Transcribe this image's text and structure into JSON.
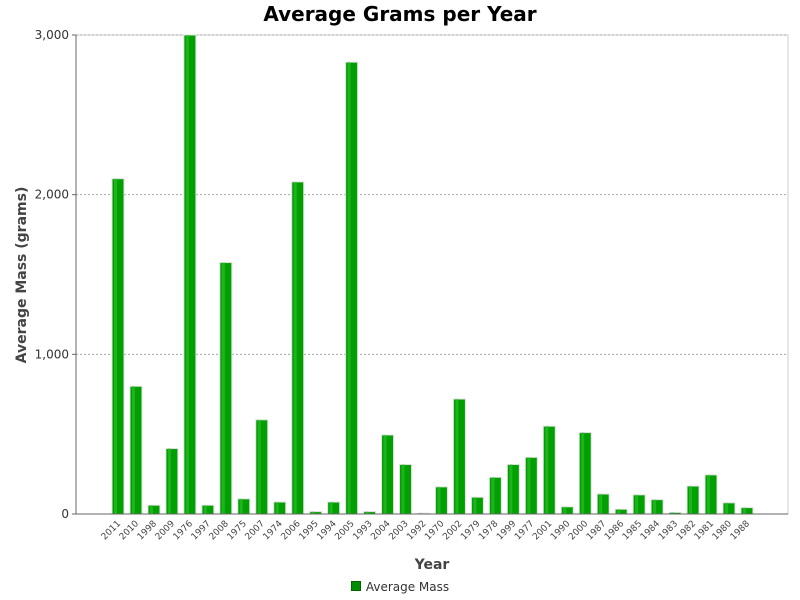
{
  "chart_data": {
    "type": "bar",
    "title": "Average Grams per Year",
    "xlabel": "Year",
    "ylabel": "Average Mass (grams)",
    "ylim": [
      0,
      3000
    ],
    "yticks": [
      "0",
      "1,000",
      "2,000",
      "3,000"
    ],
    "ytick_values": [
      0,
      1000,
      2000,
      3000
    ],
    "grid": "horizontal dashed",
    "legend_position": "bottom-center",
    "categories": [
      "2011",
      "2010",
      "1998",
      "2009",
      "1976",
      "1997",
      "2008",
      "1975",
      "2007",
      "1974",
      "2006",
      "1995",
      "1994",
      "2005",
      "1993",
      "2004",
      "2003",
      "1992",
      "1970",
      "2002",
      "1979",
      "1978",
      "1999",
      "1977",
      "2001",
      "1990",
      "2000",
      "1987",
      "1986",
      "1985",
      "1984",
      "1983",
      "1982",
      "1981",
      "1980",
      "1988"
    ],
    "series": [
      {
        "name": "Average Mass",
        "color": "#00a000",
        "values": [
          2100,
          800,
          55,
          410,
          3000,
          55,
          1575,
          95,
          590,
          75,
          2080,
          15,
          75,
          2830,
          15,
          495,
          310,
          5,
          170,
          720,
          105,
          230,
          310,
          355,
          550,
          45,
          510,
          125,
          30,
          120,
          90,
          10,
          175,
          245,
          70,
          40
        ]
      }
    ]
  }
}
